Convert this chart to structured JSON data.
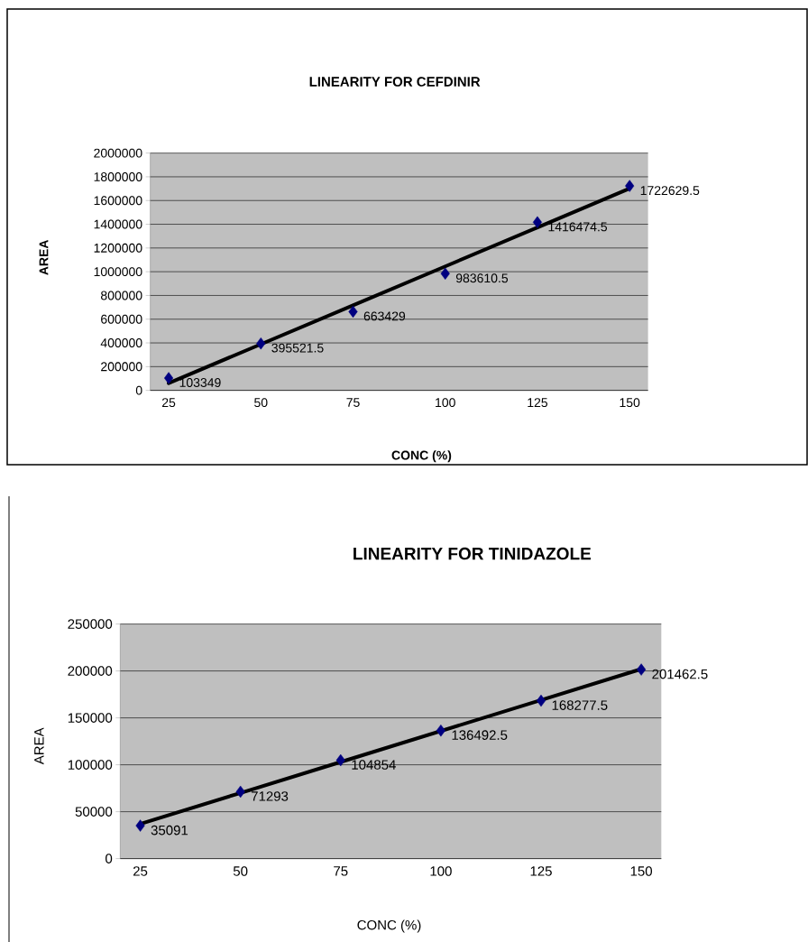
{
  "chart_data": [
    {
      "type": "scatter",
      "title": "LINEARITY FOR CEFDINIR",
      "xlabel": "CONC (%)",
      "ylabel": "AREA",
      "categories": [
        "25",
        "50",
        "75",
        "100",
        "125",
        "150"
      ],
      "series": [
        {
          "type": "line",
          "color": "#000000",
          "marker": "none",
          "values": [
            61000,
            389000,
            717000,
            1045000,
            1373000,
            1701000
          ]
        },
        {
          "color": "#000080",
          "marker": "diamond",
          "values": [
            103349,
            395521.5,
            663429,
            983610.5,
            1416474.5,
            1722629.5
          ],
          "value_labels": [
            "103349",
            "395521.5",
            "663429",
            "983610.5",
            "1416474.5",
            "1722629.5"
          ]
        }
      ],
      "ylim": [
        0,
        2000000
      ],
      "yticks": [
        0,
        200000,
        400000,
        600000,
        800000,
        1000000,
        1200000,
        1400000,
        1600000,
        1800000,
        2000000
      ],
      "grid": "y"
    },
    {
      "type": "scatter",
      "title": "LINEARITY FOR TINIDAZOLE",
      "xlabel": "CONC (%)",
      "ylabel": "AREA",
      "categories": [
        "25",
        "50",
        "75",
        "100",
        "125",
        "150"
      ],
      "series": [
        {
          "type": "line",
          "color": "#000000",
          "marker": "none",
          "values": [
            37000,
            70000,
            103000,
            136000,
            169000,
            202000
          ]
        },
        {
          "color": "#000080",
          "marker": "diamond",
          "values": [
            35091,
            71293,
            104854,
            136492.5,
            168277.5,
            201462.5
          ],
          "value_labels": [
            "35091",
            "71293",
            "104854",
            "136492.5",
            "168277.5",
            "201462.5"
          ]
        }
      ],
      "ylim": [
        0,
        250000
      ],
      "yticks": [
        0,
        50000,
        100000,
        150000,
        200000,
        250000
      ],
      "grid": "y"
    }
  ]
}
